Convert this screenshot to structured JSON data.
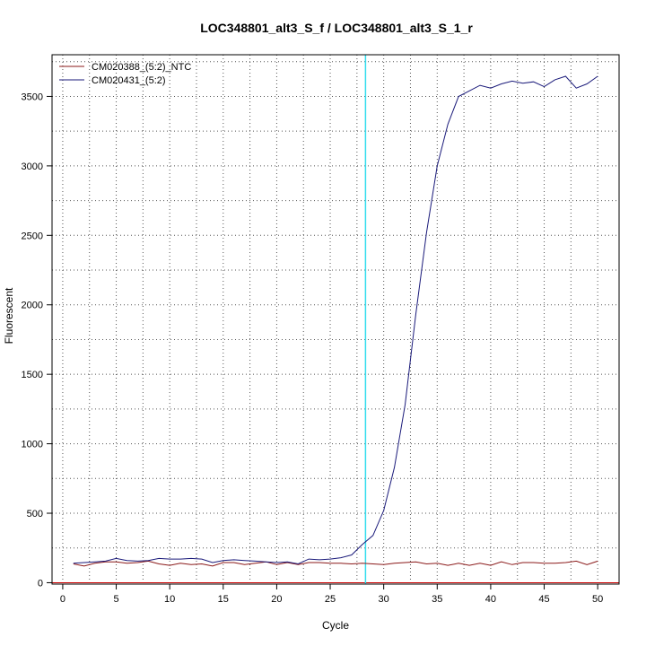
{
  "chart_data": {
    "type": "line",
    "title": "LOC348801_alt3_S_f / LOC348801_alt3_S_1_r",
    "xlabel": "Cycle",
    "ylabel": "Fluorescent",
    "xlim": [
      -1,
      52
    ],
    "ylim": [
      -10,
      3800
    ],
    "xticks": [
      0,
      5,
      10,
      15,
      20,
      25,
      30,
      35,
      40,
      45,
      50
    ],
    "yticks": [
      0,
      500,
      1000,
      1500,
      2000,
      2500,
      3000,
      3500
    ],
    "grid": true,
    "legend_position": "top-left",
    "threshold": {
      "x": 28.3,
      "color": "#33ddee"
    },
    "baseline": {
      "y": 0,
      "color": "#cc0000"
    },
    "x": [
      1,
      2,
      3,
      4,
      5,
      6,
      7,
      8,
      9,
      10,
      11,
      12,
      13,
      14,
      15,
      16,
      17,
      18,
      19,
      20,
      21,
      22,
      23,
      24,
      25,
      26,
      27,
      28,
      29,
      30,
      31,
      32,
      33,
      34,
      35,
      36,
      37,
      38,
      39,
      40,
      41,
      42,
      43,
      44,
      45,
      46,
      47,
      48,
      49,
      50
    ],
    "series": [
      {
        "name": "CM020388_(5:2)_NTC",
        "color": "#8b1a1a",
        "values": [
          135,
          120,
          140,
          150,
          150,
          140,
          145,
          155,
          135,
          125,
          140,
          130,
          135,
          120,
          145,
          145,
          130,
          140,
          150,
          130,
          145,
          130,
          145,
          145,
          140,
          140,
          135,
          140,
          135,
          130,
          140,
          145,
          150,
          135,
          140,
          125,
          140,
          125,
          140,
          125,
          150,
          130,
          145,
          145,
          140,
          140,
          145,
          155,
          130,
          155
        ]
      },
      {
        "name": "CM020431_(5:2)",
        "color": "#1a1a7a",
        "values": [
          140,
          145,
          150,
          155,
          175,
          160,
          155,
          160,
          175,
          170,
          170,
          175,
          170,
          145,
          160,
          165,
          160,
          155,
          150,
          145,
          150,
          135,
          170,
          165,
          170,
          180,
          200,
          275,
          340,
          520,
          830,
          1280,
          1930,
          2520,
          3000,
          3300,
          3500,
          3540,
          3580,
          3560,
          3590,
          3610,
          3595,
          3605,
          3570,
          3620,
          3645,
          3560,
          3590,
          3645
        ]
      }
    ]
  }
}
